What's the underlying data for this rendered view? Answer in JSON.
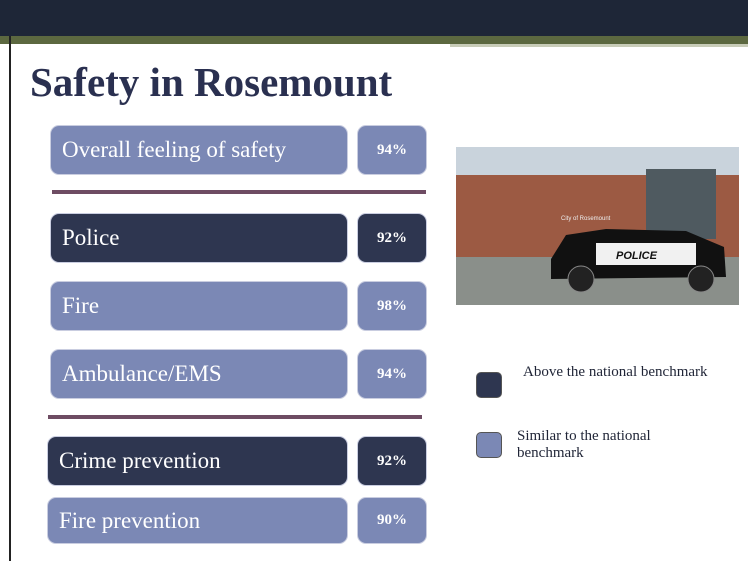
{
  "title": "Safety in Rosemount",
  "items": [
    {
      "label": "Overall feeling of safety",
      "value": "94%",
      "color": "#7b88b5"
    },
    {
      "label": "Police",
      "value": "92%",
      "color": "#2e3650"
    },
    {
      "label": "Fire",
      "value": "98%",
      "color": "#7b88b5"
    },
    {
      "label": "Ambulance/EMS",
      "value": "94%",
      "color": "#7b88b5"
    },
    {
      "label": "Crime prevention",
      "value": "92%",
      "color": "#2e3650"
    },
    {
      "label": "Fire prevention",
      "value": "90%",
      "color": "#7b88b5"
    }
  ],
  "legend": [
    {
      "label": "Above the national benchmark",
      "color": "#2e3650"
    },
    {
      "label": "Similar to the national benchmark",
      "color": "#7b88b5"
    }
  ],
  "photo": {
    "sign": "City of Rosemount",
    "car_label": "POLICE"
  }
}
